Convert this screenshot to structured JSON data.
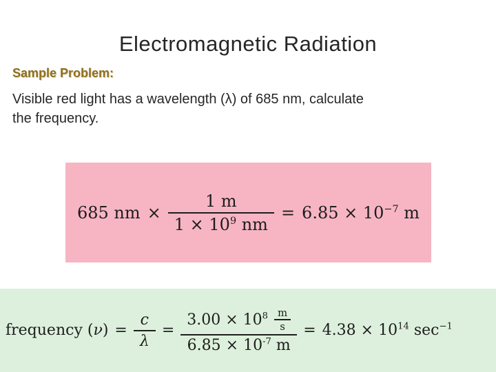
{
  "slide": {
    "title": "Electromagnetic Radiation",
    "sample_problem_label": "Sample Problem:",
    "problem_line1": "Visible red light has a wavelength (λ) of 685 nm, calculate",
    "problem_line2": "the frequency."
  },
  "equation1": {
    "lhs": "685 nm",
    "operator": "×",
    "frac_num": "1 m",
    "den_base": "1 × 10",
    "den_exp": "9",
    "den_unit": " nm",
    "equals": "=",
    "result_base": "6.85 × 10",
    "result_exp": "−7",
    "result_unit": " m"
  },
  "equation2": {
    "label_pre": "frequency (",
    "label_nu": "ν",
    "label_post": ")",
    "equals1": "=",
    "small_frac_num": "c",
    "small_frac_den": "λ",
    "equals2": "=",
    "num_base": "3.00 × 10",
    "num_exp": "8",
    "unit_num": "m",
    "unit_den": "s",
    "den_base": "6.85 × 10",
    "den_exp": "-7",
    "den_unit": " m",
    "equals3": "=",
    "result_base": "4.38 × 10",
    "result_exp": "14",
    "result_unit": " sec",
    "result_exp2": "−1"
  },
  "colors": {
    "pink_box": "#f7b5c4",
    "green_box": "#ddf0dd",
    "sample_problem_label": "#8f6f1d",
    "title": "#262626",
    "body_text": "#262626"
  }
}
